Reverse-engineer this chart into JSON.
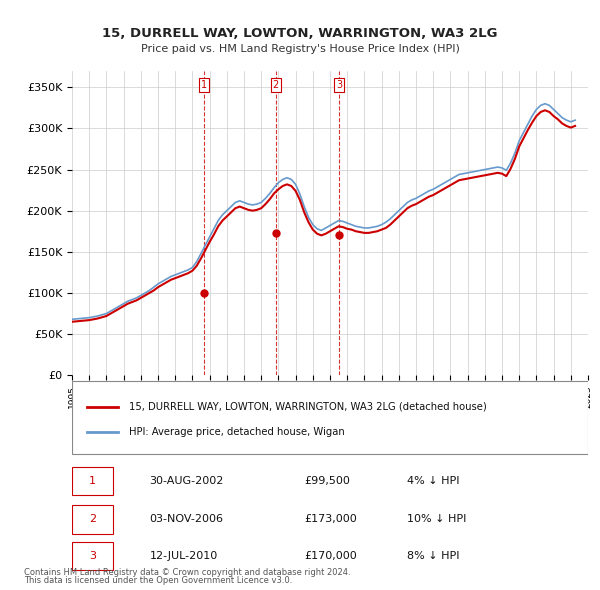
{
  "title": "15, DURRELL WAY, LOWTON, WARRINGTON, WA3 2LG",
  "subtitle": "Price paid vs. HM Land Registry's House Price Index (HPI)",
  "xlabel": "",
  "ylabel": "",
  "ylim": [
    0,
    370000
  ],
  "yticks": [
    0,
    50000,
    100000,
    150000,
    200000,
    250000,
    300000,
    350000
  ],
  "ytick_labels": [
    "£0",
    "£50K",
    "£100K",
    "£150K",
    "£200K",
    "£250K",
    "£300K",
    "£350K"
  ],
  "background_color": "#ffffff",
  "grid_color": "#cccccc",
  "sale_color": "#cc0000",
  "hpi_color": "#6699cc",
  "legend_sale": "15, DURRELL WAY, LOWTON, WARRINGTON, WA3 2LG (detached house)",
  "legend_hpi": "HPI: Average price, detached house, Wigan",
  "transactions": [
    {
      "label": "1",
      "date": "30-AUG-2002",
      "price": 99500,
      "pct": "4%",
      "x": 2002.67
    },
    {
      "label": "2",
      "date": "03-NOV-2006",
      "price": 173000,
      "pct": "10%",
      "x": 2006.84
    },
    {
      "label": "3",
      "date": "12-JUL-2010",
      "price": 170000,
      "pct": "8%",
      "x": 2010.53
    }
  ],
  "footer1": "Contains HM Land Registry data © Crown copyright and database right 2024.",
  "footer2": "This data is licensed under the Open Government Licence v3.0.",
  "hpi_data": {
    "years": [
      1995.0,
      1995.25,
      1995.5,
      1995.75,
      1996.0,
      1996.25,
      1996.5,
      1996.75,
      1997.0,
      1997.25,
      1997.5,
      1997.75,
      1998.0,
      1998.25,
      1998.5,
      1998.75,
      1999.0,
      1999.25,
      1999.5,
      1999.75,
      2000.0,
      2000.25,
      2000.5,
      2000.75,
      2001.0,
      2001.25,
      2001.5,
      2001.75,
      2002.0,
      2002.25,
      2002.5,
      2002.75,
      2003.0,
      2003.25,
      2003.5,
      2003.75,
      2004.0,
      2004.25,
      2004.5,
      2004.75,
      2005.0,
      2005.25,
      2005.5,
      2005.75,
      2006.0,
      2006.25,
      2006.5,
      2006.75,
      2007.0,
      2007.25,
      2007.5,
      2007.75,
      2008.0,
      2008.25,
      2008.5,
      2008.75,
      2009.0,
      2009.25,
      2009.5,
      2009.75,
      2010.0,
      2010.25,
      2010.5,
      2010.75,
      2011.0,
      2011.25,
      2011.5,
      2011.75,
      2012.0,
      2012.25,
      2012.5,
      2012.75,
      2013.0,
      2013.25,
      2013.5,
      2013.75,
      2014.0,
      2014.25,
      2014.5,
      2014.75,
      2015.0,
      2015.25,
      2015.5,
      2015.75,
      2016.0,
      2016.25,
      2016.5,
      2016.75,
      2017.0,
      2017.25,
      2017.5,
      2017.75,
      2018.0,
      2018.25,
      2018.5,
      2018.75,
      2019.0,
      2019.25,
      2019.5,
      2019.75,
      2020.0,
      2020.25,
      2020.5,
      2020.75,
      2021.0,
      2021.25,
      2021.5,
      2021.75,
      2022.0,
      2022.25,
      2022.5,
      2022.75,
      2023.0,
      2023.25,
      2023.5,
      2023.75,
      2024.0,
      2024.25
    ],
    "values": [
      68000,
      68500,
      69000,
      69500,
      70000,
      71000,
      72000,
      73500,
      75000,
      78000,
      81000,
      84000,
      87000,
      90000,
      92000,
      94000,
      97000,
      100000,
      103000,
      107000,
      111000,
      114000,
      117000,
      120000,
      122000,
      124000,
      126000,
      128000,
      131000,
      138000,
      148000,
      158000,
      168000,
      178000,
      188000,
      195000,
      200000,
      205000,
      210000,
      212000,
      210000,
      208000,
      207000,
      208000,
      210000,
      215000,
      221000,
      228000,
      234000,
      238000,
      240000,
      238000,
      232000,
      220000,
      205000,
      192000,
      183000,
      178000,
      176000,
      179000,
      182000,
      185000,
      188000,
      187000,
      185000,
      183000,
      181000,
      180000,
      179000,
      179000,
      180000,
      181000,
      183000,
      186000,
      190000,
      195000,
      200000,
      205000,
      210000,
      213000,
      215000,
      218000,
      221000,
      224000,
      226000,
      229000,
      232000,
      235000,
      238000,
      241000,
      244000,
      245000,
      246000,
      247000,
      248000,
      249000,
      250000,
      251000,
      252000,
      253000,
      252000,
      249000,
      258000,
      270000,
      285000,
      295000,
      305000,
      315000,
      323000,
      328000,
      330000,
      328000,
      323000,
      318000,
      313000,
      310000,
      308000,
      310000
    ]
  },
  "sale_data": {
    "years": [
      1995.0,
      1995.25,
      1995.5,
      1995.75,
      1996.0,
      1996.25,
      1996.5,
      1996.75,
      1997.0,
      1997.25,
      1997.5,
      1997.75,
      1998.0,
      1998.25,
      1998.5,
      1998.75,
      1999.0,
      1999.25,
      1999.5,
      1999.75,
      2000.0,
      2000.25,
      2000.5,
      2000.75,
      2001.0,
      2001.25,
      2001.5,
      2001.75,
      2002.0,
      2002.25,
      2002.5,
      2002.75,
      2003.0,
      2003.25,
      2003.5,
      2003.75,
      2004.0,
      2004.25,
      2004.5,
      2004.75,
      2005.0,
      2005.25,
      2005.5,
      2005.75,
      2006.0,
      2006.25,
      2006.5,
      2006.75,
      2007.0,
      2007.25,
      2007.5,
      2007.75,
      2008.0,
      2008.25,
      2008.5,
      2008.75,
      2009.0,
      2009.25,
      2009.5,
      2009.75,
      2010.0,
      2010.25,
      2010.5,
      2010.75,
      2011.0,
      2011.25,
      2011.5,
      2011.75,
      2012.0,
      2012.25,
      2012.5,
      2012.75,
      2013.0,
      2013.25,
      2013.5,
      2013.75,
      2014.0,
      2014.25,
      2014.5,
      2014.75,
      2015.0,
      2015.25,
      2015.5,
      2015.75,
      2016.0,
      2016.25,
      2016.5,
      2016.75,
      2017.0,
      2017.25,
      2017.5,
      2017.75,
      2018.0,
      2018.25,
      2018.5,
      2018.75,
      2019.0,
      2019.25,
      2019.5,
      2019.75,
      2020.0,
      2020.25,
      2020.5,
      2020.75,
      2021.0,
      2021.25,
      2021.5,
      2021.75,
      2022.0,
      2022.25,
      2022.5,
      2022.75,
      2023.0,
      2023.25,
      2023.5,
      2023.75,
      2024.0,
      2024.25
    ],
    "values": [
      65000,
      65500,
      66000,
      66500,
      67000,
      68000,
      69000,
      70500,
      72000,
      75000,
      78000,
      81000,
      84000,
      87000,
      89000,
      91000,
      94000,
      97000,
      100000,
      103000,
      107000,
      110000,
      113000,
      116000,
      118000,
      120000,
      122000,
      124000,
      127000,
      133000,
      142000,
      152000,
      162000,
      171000,
      181000,
      188000,
      193000,
      198000,
      203000,
      205000,
      203000,
      201000,
      200000,
      201000,
      203000,
      208000,
      214000,
      221000,
      226000,
      230000,
      232000,
      230000,
      224000,
      213000,
      198000,
      186000,
      177000,
      172000,
      170000,
      172000,
      175000,
      178000,
      181000,
      180000,
      178000,
      177000,
      175000,
      174000,
      173000,
      173000,
      174000,
      175000,
      177000,
      179000,
      183000,
      188000,
      193000,
      198000,
      203000,
      206000,
      208000,
      211000,
      214000,
      217000,
      219000,
      222000,
      225000,
      228000,
      231000,
      234000,
      237000,
      238000,
      239000,
      240000,
      241000,
      242000,
      243000,
      244000,
      245000,
      246000,
      245000,
      242000,
      251000,
      263000,
      278000,
      288000,
      298000,
      307000,
      315000,
      320000,
      322000,
      320000,
      315000,
      311000,
      306000,
      303000,
      301000,
      303000
    ]
  }
}
